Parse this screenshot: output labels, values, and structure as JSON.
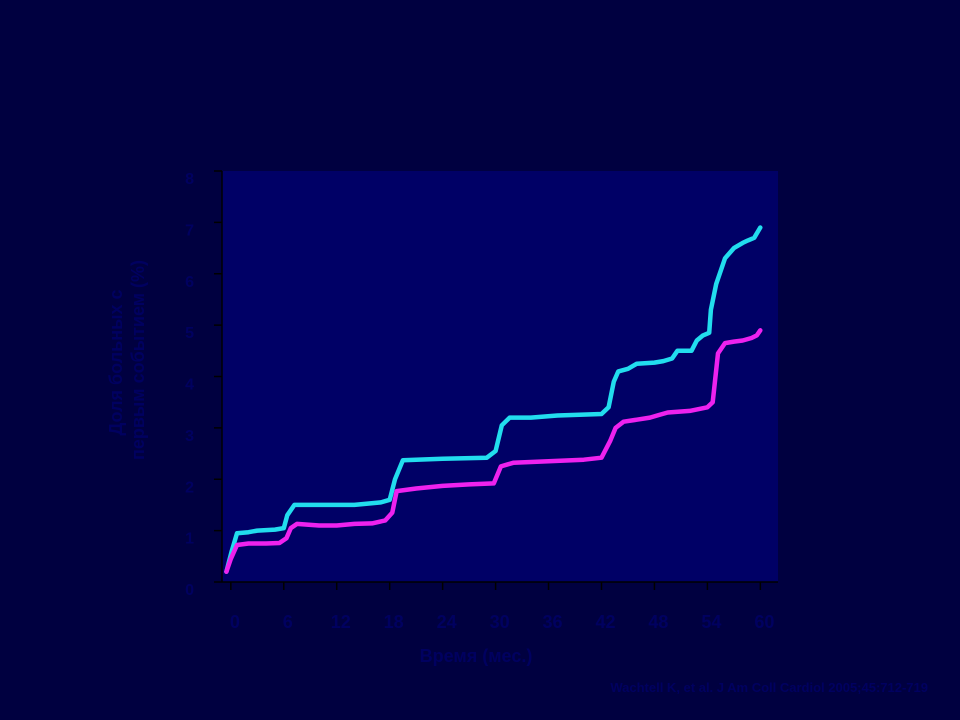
{
  "chart_data": {
    "type": "line",
    "title": "",
    "ylabel_lines": [
      "Доля больных с",
      "первым событием (%)"
    ],
    "xlabel": "Время (мес.)",
    "ylim": [
      0,
      8
    ],
    "xlim": [
      -1,
      62
    ],
    "y_ticks": [
      "0",
      "1",
      "2",
      "3",
      "4",
      "5",
      "6",
      "7",
      "8"
    ],
    "x_ticks": [
      {
        "value": 0,
        "label": "0"
      },
      {
        "value": 6,
        "label": "6"
      },
      {
        "value": 12,
        "label": "12"
      },
      {
        "value": 18,
        "label": "18"
      },
      {
        "value": 24,
        "label": "24"
      },
      {
        "value": 30,
        "label": "30"
      },
      {
        "value": 36,
        "label": "36"
      },
      {
        "value": 42,
        "label": "42"
      },
      {
        "value": 48,
        "label": "48"
      },
      {
        "value": 54,
        "label": "54"
      },
      {
        "value": 60,
        "label": "60"
      }
    ],
    "grid": false,
    "plot_background": "#000066",
    "series": [
      {
        "color": "#22DDEE",
        "points": [
          [
            -0.5,
            0.2
          ],
          [
            0.1,
            0.6
          ],
          [
            0.7,
            0.95
          ],
          [
            2,
            0.97
          ],
          [
            3,
            1.0
          ],
          [
            5,
            1.02
          ],
          [
            6,
            1.05
          ],
          [
            6.4,
            1.3
          ],
          [
            7.2,
            1.5
          ],
          [
            10,
            1.5
          ],
          [
            14,
            1.5
          ],
          [
            17,
            1.55
          ],
          [
            18,
            1.6
          ],
          [
            18.6,
            2.0
          ],
          [
            19.5,
            2.37
          ],
          [
            24,
            2.4
          ],
          [
            29,
            2.42
          ],
          [
            30,
            2.55
          ],
          [
            30.7,
            3.05
          ],
          [
            31.6,
            3.2
          ],
          [
            34,
            3.2
          ],
          [
            37,
            3.24
          ],
          [
            42,
            3.27
          ],
          [
            42.8,
            3.4
          ],
          [
            43.4,
            3.9
          ],
          [
            43.9,
            4.1
          ],
          [
            45,
            4.15
          ],
          [
            46,
            4.25
          ],
          [
            48,
            4.27
          ],
          [
            49,
            4.3
          ],
          [
            50,
            4.35
          ],
          [
            50.6,
            4.5
          ],
          [
            52.2,
            4.5
          ],
          [
            52.8,
            4.7
          ],
          [
            53.5,
            4.8
          ],
          [
            54.2,
            4.85
          ],
          [
            54.4,
            5.3
          ],
          [
            55,
            5.8
          ],
          [
            56,
            6.3
          ],
          [
            57,
            6.5
          ],
          [
            58,
            6.6
          ],
          [
            58.6,
            6.65
          ],
          [
            59.3,
            6.7
          ],
          [
            60,
            6.9
          ]
        ]
      },
      {
        "color": "#EE22EE",
        "points": [
          [
            -0.5,
            0.2
          ],
          [
            0,
            0.45
          ],
          [
            0.7,
            0.72
          ],
          [
            2,
            0.75
          ],
          [
            4,
            0.75
          ],
          [
            5.5,
            0.76
          ],
          [
            6.3,
            0.85
          ],
          [
            6.8,
            1.05
          ],
          [
            7.5,
            1.13
          ],
          [
            10,
            1.1
          ],
          [
            12,
            1.1
          ],
          [
            14,
            1.13
          ],
          [
            16,
            1.14
          ],
          [
            17.5,
            1.2
          ],
          [
            18.3,
            1.35
          ],
          [
            18.8,
            1.77
          ],
          [
            21,
            1.82
          ],
          [
            24,
            1.87
          ],
          [
            27,
            1.9
          ],
          [
            29.8,
            1.92
          ],
          [
            30.6,
            2.25
          ],
          [
            32,
            2.32
          ],
          [
            36,
            2.35
          ],
          [
            40,
            2.38
          ],
          [
            42,
            2.42
          ],
          [
            43,
            2.75
          ],
          [
            43.6,
            3.0
          ],
          [
            44.5,
            3.12
          ],
          [
            46,
            3.16
          ],
          [
            47.5,
            3.2
          ],
          [
            48.5,
            3.25
          ],
          [
            49.5,
            3.3
          ],
          [
            52,
            3.33
          ],
          [
            54,
            3.4
          ],
          [
            54.6,
            3.5
          ],
          [
            55.2,
            4.45
          ],
          [
            56,
            4.65
          ],
          [
            57,
            4.68
          ],
          [
            58,
            4.7
          ],
          [
            59,
            4.75
          ],
          [
            59.6,
            4.8
          ],
          [
            60,
            4.9
          ]
        ]
      }
    ]
  },
  "citation": "Wachtell K, et al. J Am Coll Cardiol 2005;45:712-719"
}
